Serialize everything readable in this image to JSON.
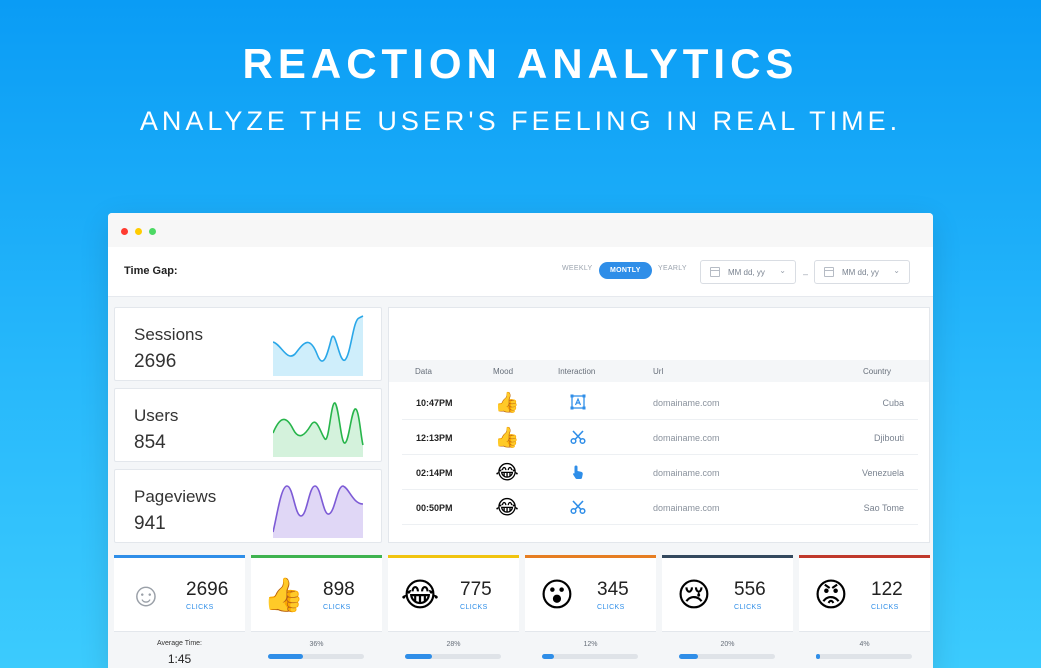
{
  "hero": {
    "title": "REACTION ANALYTICS",
    "subtitle": "ANALYZE THE USER'S FEELING IN REAL TIME."
  },
  "toolbar": {
    "time_gap_label": "Time Gap:",
    "periods": {
      "weekly": "WEEKLY",
      "monthly": "MONTLY",
      "yearly": "YEARLY"
    },
    "selected_period": "MONTLY",
    "date_from_placeholder": "MM dd, yy",
    "date_to_placeholder": "MM dd, yy",
    "separator": "–"
  },
  "stats": [
    {
      "label": "Sessions",
      "value": "2696",
      "color": "#2aa7e8",
      "fill": "#cfeefb"
    },
    {
      "label": "Users",
      "value": "854",
      "color": "#27b54b",
      "fill": "#d4f2dc"
    },
    {
      "label": "Pageviews",
      "value": "941",
      "color": "#7d5bd6",
      "fill": "#e0d7f6"
    }
  ],
  "table": {
    "headers": {
      "data": "Data",
      "mood": "Mood",
      "interaction": "Interaction",
      "url": "Url",
      "country": "Country"
    },
    "rows": [
      {
        "time": "10:47PM",
        "mood": "👍",
        "mood_icon": "thumbs-up-icon",
        "interaction_icon": "text-select-icon",
        "url": "domainame.com",
        "country": "Cuba"
      },
      {
        "time": "12:13PM",
        "mood": "👍",
        "mood_icon": "thumbs-up-icon",
        "interaction_icon": "scissors-icon",
        "url": "domainame.com",
        "country": "Djibouti"
      },
      {
        "time": "02:14PM",
        "mood": "😂",
        "mood_icon": "tears-of-joy-icon",
        "interaction_icon": "pointer-hand-icon",
        "url": "domainame.com",
        "country": "Venezuela"
      },
      {
        "time": "00:50PM",
        "mood": "😂",
        "mood_icon": "tears-of-joy-icon",
        "interaction_icon": "scissors-icon",
        "url": "domainame.com",
        "country": "Sao Tome"
      }
    ]
  },
  "reactions": [
    {
      "emoji": "☺",
      "icon": "neutral-smiley-icon",
      "count": "2696",
      "clicks_label": "CLICKS",
      "accent": "#2f8ee8",
      "avg_label": "Average Time:",
      "avg_value": "1:45"
    },
    {
      "emoji": "👍",
      "icon": "thumbs-up-icon",
      "count": "898",
      "clicks_label": "CLICKS",
      "accent": "#3fb34f",
      "percent_label": "36%",
      "percent": 36
    },
    {
      "emoji": "😂",
      "icon": "tears-of-joy-icon",
      "count": "775",
      "clicks_label": "CLICKS",
      "accent": "#f1c40f",
      "percent_label": "28%",
      "percent": 28
    },
    {
      "emoji": "😮",
      "icon": "surprised-face-icon",
      "count": "345",
      "clicks_label": "CLICKS",
      "accent": "#e67e22",
      "percent_label": "12%",
      "percent": 12
    },
    {
      "emoji": "😢",
      "icon": "crying-face-icon",
      "count": "556",
      "clicks_label": "CLICKS",
      "accent": "#34495e",
      "percent_label": "20%",
      "percent": 20
    },
    {
      "emoji": "😡",
      "icon": "angry-face-icon",
      "count": "122",
      "clicks_label": "CLICKS",
      "accent": "#c0392b",
      "percent_label": "4%",
      "percent": 4
    }
  ]
}
